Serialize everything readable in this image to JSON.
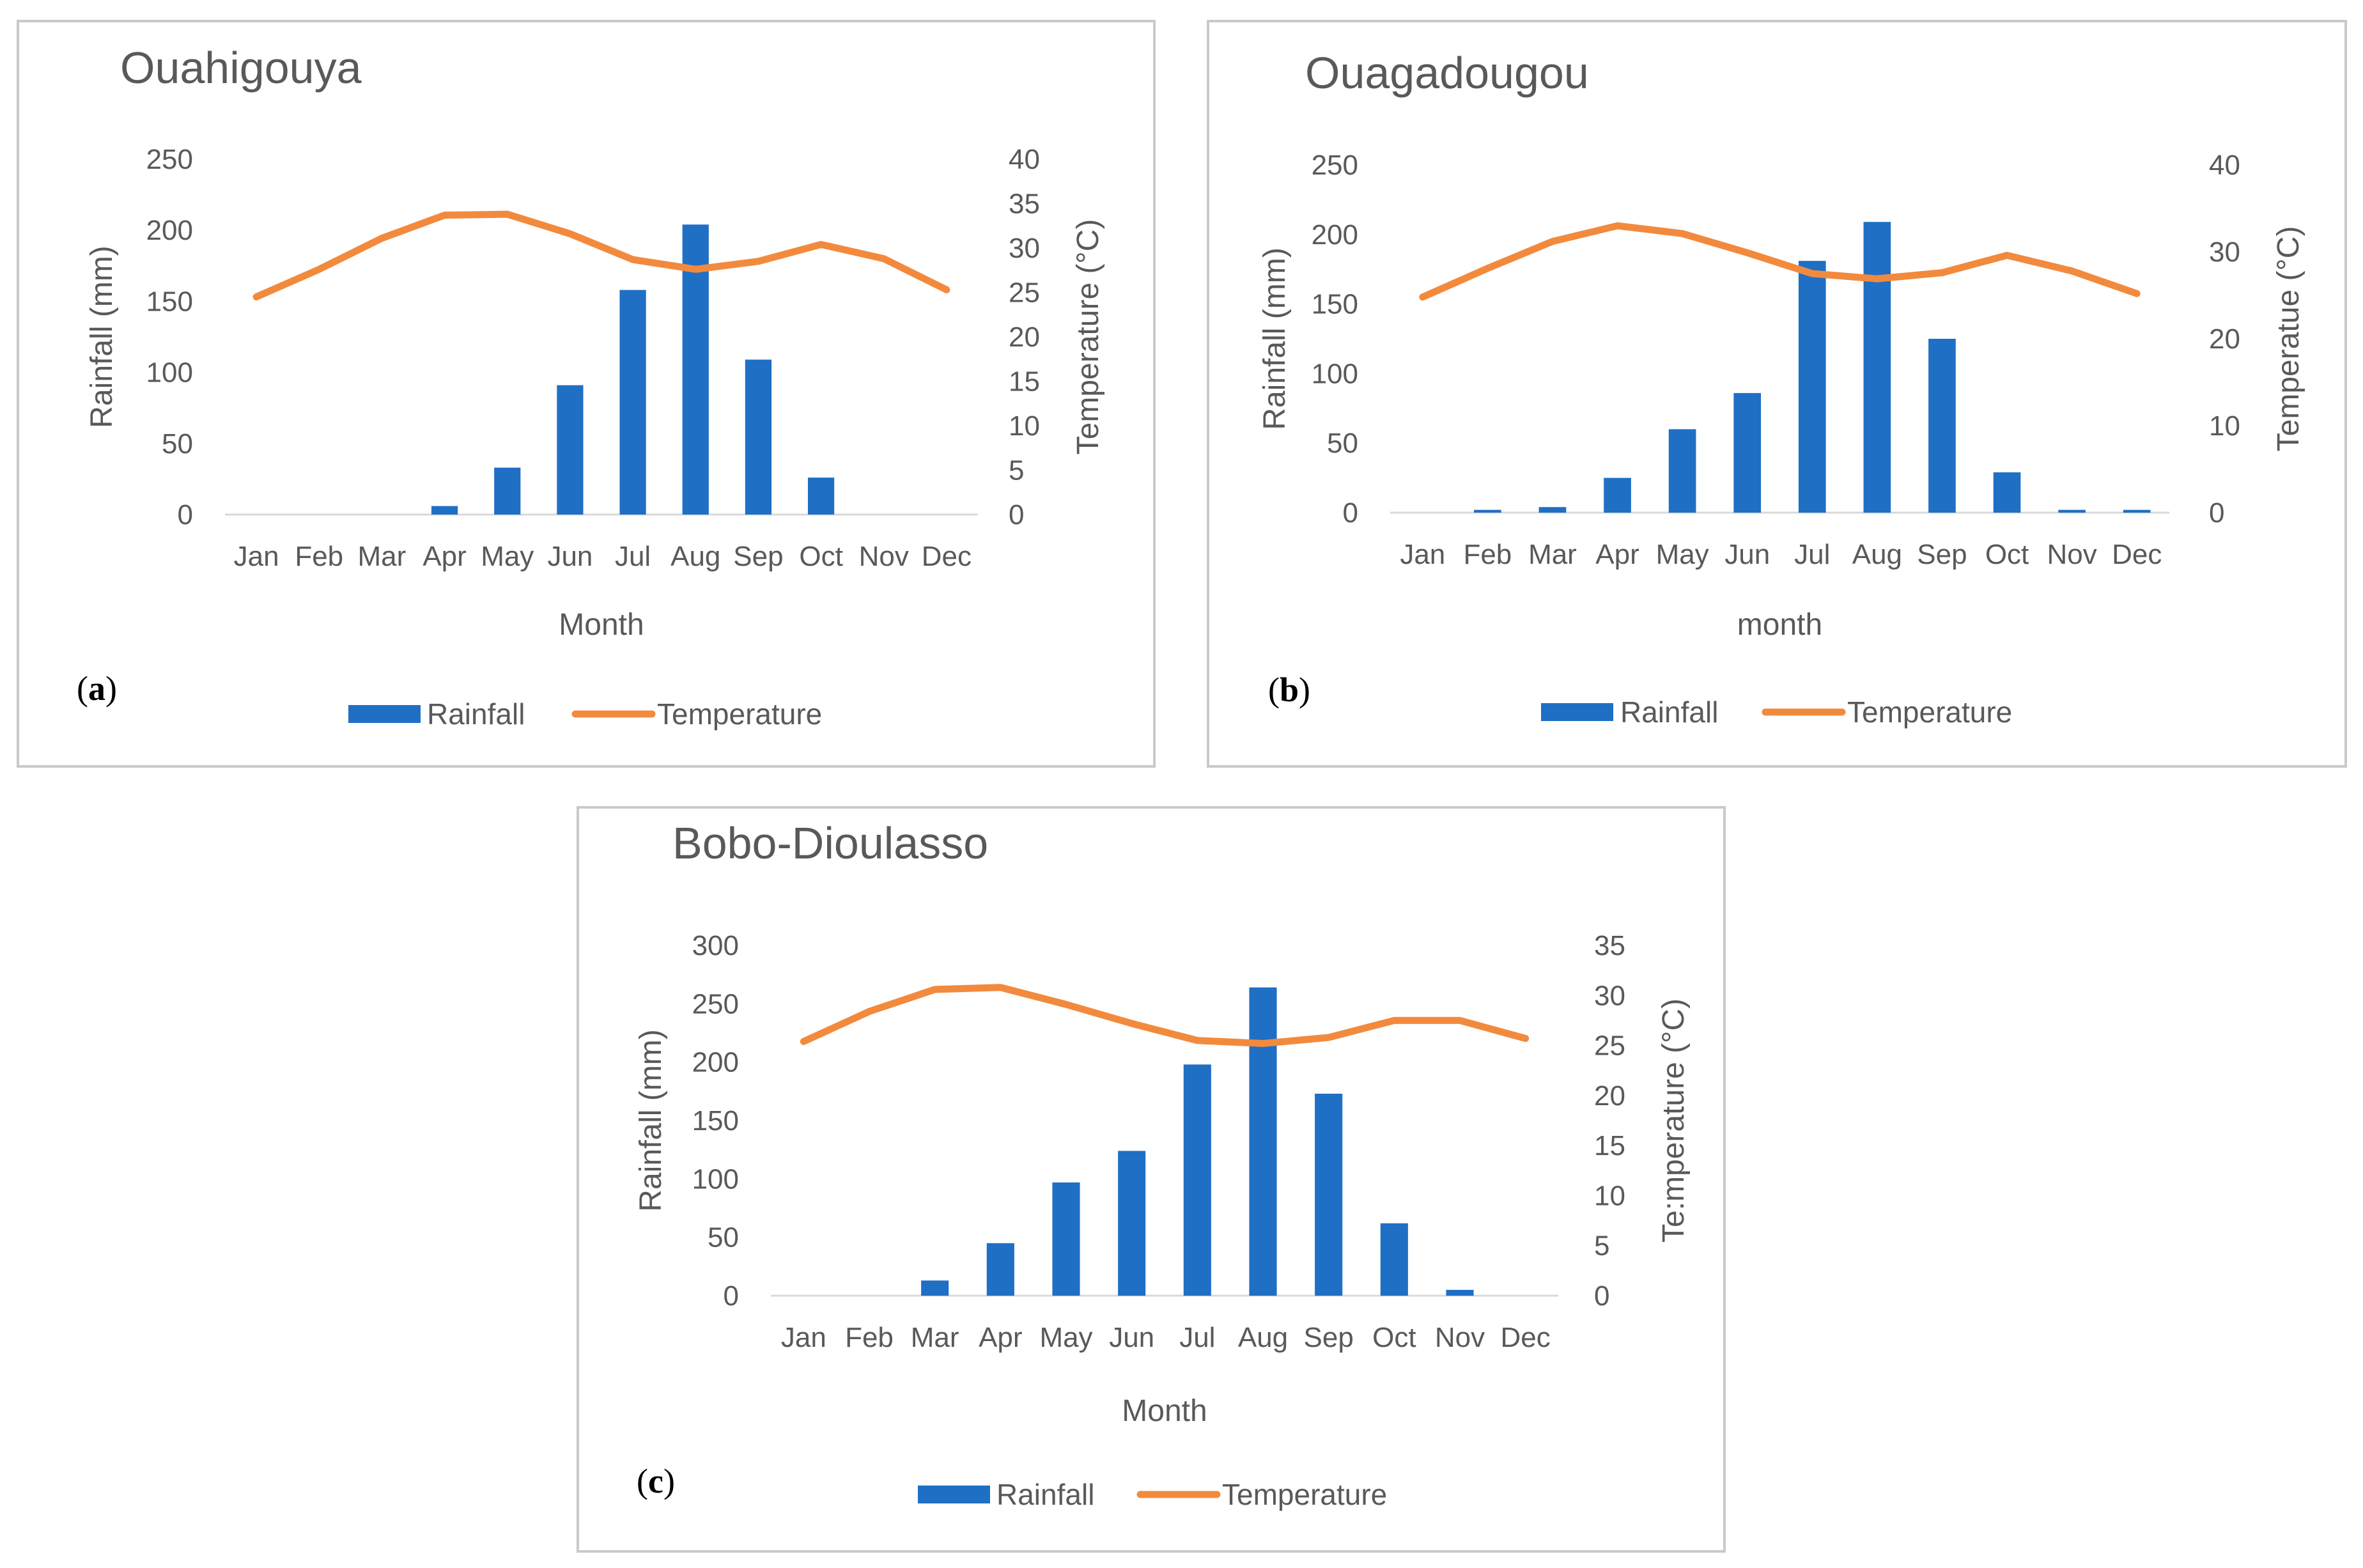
{
  "colors": {
    "rainfall": "#1f6fc5",
    "temperature": "#f28a3d",
    "text": "#595959",
    "baseline": "#d9d9d9"
  },
  "chart_data": [
    {
      "type": "bar",
      "panel_letter": "a",
      "title": "Ouahigouya",
      "categories": [
        "Jan",
        "Feb",
        "Mar",
        "Apr",
        "May",
        "Jun",
        "Jul",
        "Aug",
        "Sep",
        "Oct",
        "Nov",
        "Dec"
      ],
      "xlabel": "Month",
      "ylabel": "Rainfall (mm)",
      "y2label": "Temperature (°C)",
      "ylim": [
        0,
        250
      ],
      "yticks": [
        0,
        50,
        100,
        150,
        200,
        250
      ],
      "y2lim": [
        0,
        40
      ],
      "y2ticks": [
        0,
        5,
        10,
        15,
        20,
        25,
        30,
        35,
        40
      ],
      "series": [
        {
          "name": "Rainfall",
          "type": "bar",
          "axis": "left",
          "values": [
            0,
            0,
            0,
            6,
            33,
            91,
            158,
            204,
            109,
            26,
            0,
            0
          ]
        },
        {
          "name": "Temperature",
          "type": "line",
          "axis": "right",
          "values": [
            24.5,
            27.6,
            31.1,
            33.7,
            33.8,
            31.6,
            28.7,
            27.6,
            28.5,
            30.4,
            28.8,
            25.3
          ]
        }
      ]
    },
    {
      "type": "bar",
      "panel_letter": "b",
      "title": "Ouagadougou",
      "categories": [
        "Jan",
        "Feb",
        "Mar",
        "Apr",
        "May",
        "Jun",
        "Jul",
        "Aug",
        "Sep",
        "Oct",
        "Nov",
        "Dec"
      ],
      "xlabel": "month",
      "ylabel": "Rainfall (mm)",
      "y2label": "Temperatue (°C)",
      "ylim": [
        0,
        250
      ],
      "yticks": [
        0,
        50,
        100,
        150,
        200,
        250
      ],
      "y2lim": [
        0,
        40
      ],
      "y2ticks": [
        0,
        10,
        20,
        30,
        40
      ],
      "series": [
        {
          "name": "Rainfall",
          "type": "bar",
          "axis": "left",
          "values": [
            0,
            2,
            4,
            25,
            60,
            86,
            181,
            209,
            125,
            29,
            2,
            2
          ]
        },
        {
          "name": "Temperature",
          "type": "line",
          "axis": "right",
          "values": [
            24.8,
            28.1,
            31.2,
            33.0,
            32.1,
            29.9,
            27.5,
            26.9,
            27.6,
            29.6,
            27.8,
            25.2
          ]
        }
      ]
    },
    {
      "type": "bar",
      "panel_letter": "c",
      "title": "Bobo-Dioulasso",
      "categories": [
        "Jan",
        "Feb",
        "Mar",
        "Apr",
        "May",
        "Jun",
        "Jul",
        "Aug",
        "Sep",
        "Oct",
        "Nov",
        "Dec"
      ],
      "xlabel": "Month",
      "ylabel": "Rainfall (mm)",
      "y2label": "Te:mperature (°C)",
      "ylim": [
        0,
        300
      ],
      "yticks": [
        0,
        50,
        100,
        150,
        200,
        250,
        300
      ],
      "y2lim": [
        0,
        35
      ],
      "y2ticks": [
        0,
        5,
        10,
        15,
        20,
        25,
        30,
        35
      ],
      "series": [
        {
          "name": "Rainfall",
          "type": "bar",
          "axis": "left",
          "values": [
            0,
            0,
            13,
            45,
            97,
            124,
            198,
            264,
            173,
            62,
            5,
            0
          ]
        },
        {
          "name": "Temperature",
          "type": "line",
          "axis": "right",
          "values": [
            25.4,
            28.4,
            30.6,
            30.8,
            29.1,
            27.2,
            25.5,
            25.2,
            25.8,
            27.5,
            27.5,
            25.7
          ]
        }
      ]
    }
  ]
}
